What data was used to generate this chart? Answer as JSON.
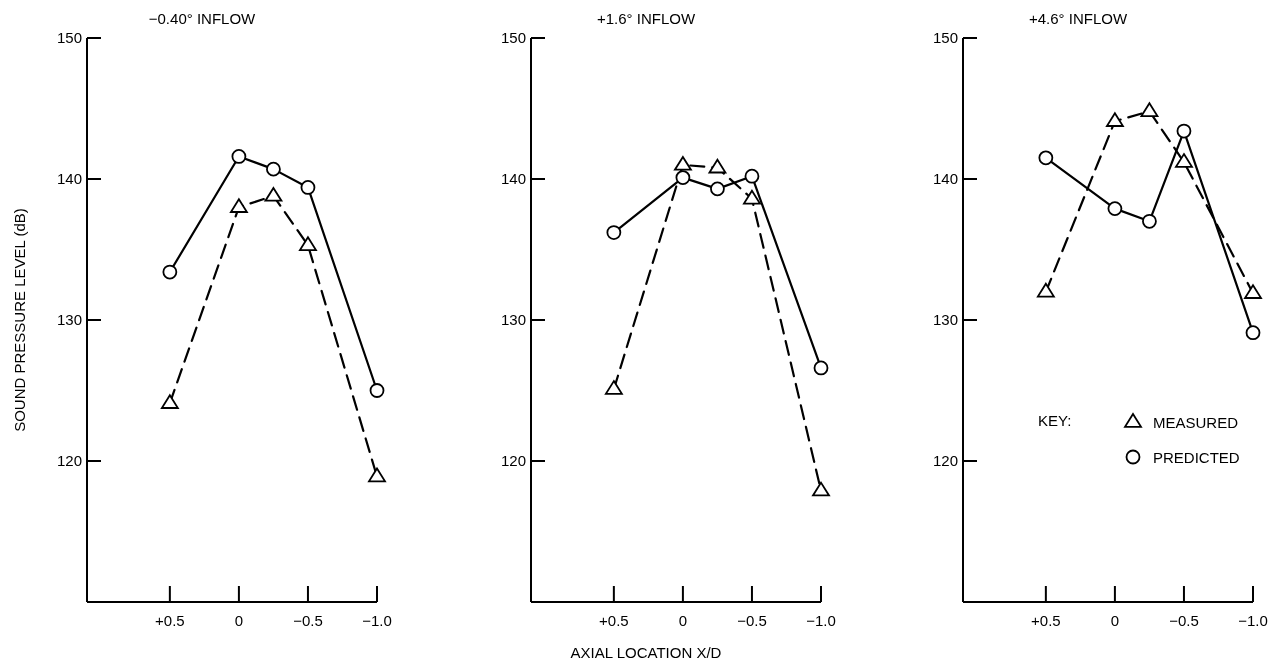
{
  "chart_data": [
    {
      "type": "line",
      "title": "−0.40° INFLOW",
      "ylabel": "SOUND PRESSURE LEVEL (dB)",
      "x": [
        0.5,
        0,
        -0.25,
        -0.5,
        -1.0
      ],
      "xlim": [
        1.1,
        -1.0
      ],
      "xticks": [
        {
          "value": 0.5,
          "label": "+0.5"
        },
        {
          "value": 0,
          "label": "0"
        },
        {
          "value": -0.5,
          "label": "−0.5"
        },
        {
          "value": -1.0,
          "label": "−1.0"
        }
      ],
      "ylim": [
        110,
        150
      ],
      "yticks": [
        120,
        130,
        140,
        150
      ],
      "grid": false,
      "legend": false,
      "series": [
        {
          "color": "#000000",
          "marker": "triangle",
          "line_style": "dashed",
          "values": [
            124.1,
            138.0,
            138.8,
            135.3,
            118.9
          ]
        },
        {
          "color": "#000000",
          "marker": "circle",
          "line_style": "solid",
          "values": [
            133.4,
            141.6,
            140.7,
            139.4,
            125.0
          ]
        }
      ]
    },
    {
      "type": "line",
      "title": "+1.6° INFLOW",
      "xlabel": "AXIAL LOCATION X/D",
      "x": [
        0.5,
        0,
        -0.25,
        -0.5,
        -1.0
      ],
      "xlim": [
        1.1,
        -1.0
      ],
      "xticks": [
        {
          "value": 0.5,
          "label": "+0.5"
        },
        {
          "value": 0,
          "label": "0"
        },
        {
          "value": -0.5,
          "label": "−0.5"
        },
        {
          "value": -1.0,
          "label": "−1.0"
        }
      ],
      "ylim": [
        110,
        150
      ],
      "yticks": [
        120,
        130,
        140,
        150
      ],
      "grid": false,
      "legend": false,
      "series": [
        {
          "color": "#000000",
          "marker": "triangle",
          "line_style": "dashed",
          "values": [
            125.1,
            141.0,
            140.8,
            138.6,
            117.9
          ]
        },
        {
          "color": "#000000",
          "marker": "circle",
          "line_style": "solid",
          "values": [
            136.2,
            140.1,
            139.3,
            140.2,
            126.6
          ]
        }
      ]
    },
    {
      "type": "line",
      "title": "+4.6° INFLOW",
      "legend_title": "KEY:",
      "x": [
        0.5,
        0,
        -0.25,
        -0.5,
        -1.0
      ],
      "xlim": [
        1.1,
        -1.0
      ],
      "xticks": [
        {
          "value": 0.5,
          "label": "+0.5"
        },
        {
          "value": 0,
          "label": "0"
        },
        {
          "value": -0.5,
          "label": "−0.5"
        },
        {
          "value": -1.0,
          "label": "−1.0"
        }
      ],
      "ylim": [
        110,
        150
      ],
      "yticks": [
        120,
        130,
        140,
        150
      ],
      "grid": false,
      "legend": "bottom right",
      "series": [
        {
          "name": "MEASURED",
          "color": "#000000",
          "marker": "triangle",
          "line_style": "dashed",
          "values": [
            132.0,
            144.1,
            144.8,
            141.2,
            131.9
          ]
        },
        {
          "name": "PREDICTED",
          "color": "#000000",
          "marker": "circle",
          "line_style": "solid",
          "values": [
            141.5,
            137.9,
            137.0,
            143.4,
            129.1
          ]
        }
      ]
    }
  ]
}
